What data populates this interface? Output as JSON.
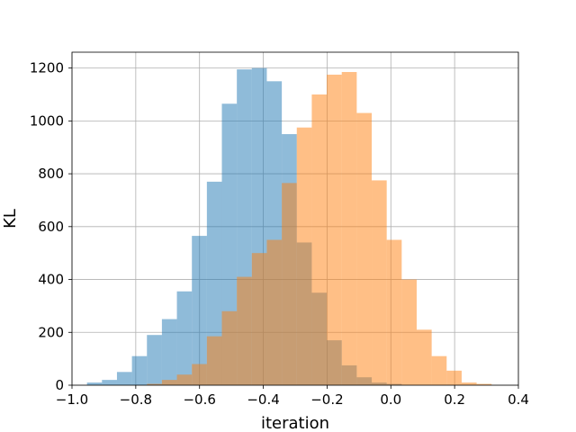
{
  "chart_data": {
    "type": "bar",
    "xlabel": "iteration",
    "ylabel": "KL",
    "xlim": [
      -1.0,
      0.4
    ],
    "ylim": [
      0,
      1260
    ],
    "grid": true,
    "x_ticks": [
      -1.0,
      -0.8,
      -0.6,
      -0.4,
      -0.2,
      0.0,
      0.2,
      0.4
    ],
    "x_tick_labels": [
      "−1.0",
      "−0.8",
      "−0.6",
      "−0.4",
      "−0.2",
      "0.0",
      "0.2",
      "0.4"
    ],
    "y_ticks": [
      0,
      200,
      400,
      600,
      800,
      1000,
      1200
    ],
    "y_tick_labels": [
      "0",
      "200",
      "400",
      "600",
      "800",
      "1000",
      "1200"
    ],
    "colors": {
      "series_1": "#1f77b4",
      "series_2": "#ff7f0e",
      "bar_alpha": 0.5,
      "grid": "#b0b0b0",
      "axes": "#000000"
    },
    "series": [
      {
        "bin_edges": [
          -0.953,
          -0.906,
          -0.859,
          -0.812,
          -0.765,
          -0.718,
          -0.671,
          -0.624,
          -0.577,
          -0.53,
          -0.483,
          -0.436,
          -0.389,
          -0.342,
          -0.295,
          -0.248,
          -0.201,
          -0.154,
          -0.107,
          -0.06,
          -0.013,
          0.034
        ],
        "values": [
          10,
          20,
          50,
          110,
          190,
          250,
          355,
          565,
          770,
          1065,
          1195,
          1200,
          1150,
          950,
          540,
          350,
          170,
          75,
          30,
          10,
          5
        ]
      },
      {
        "bin_edges": [
          -0.765,
          -0.718,
          -0.671,
          -0.624,
          -0.577,
          -0.53,
          -0.483,
          -0.436,
          -0.389,
          -0.342,
          -0.295,
          -0.248,
          -0.201,
          -0.154,
          -0.107,
          -0.06,
          -0.013,
          0.034,
          0.081,
          0.128,
          0.175,
          0.222,
          0.269,
          0.316
        ],
        "values": [
          5,
          20,
          40,
          80,
          185,
          280,
          410,
          500,
          550,
          765,
          975,
          1100,
          1175,
          1185,
          1030,
          775,
          550,
          400,
          210,
          110,
          55,
          10,
          5
        ]
      }
    ]
  }
}
